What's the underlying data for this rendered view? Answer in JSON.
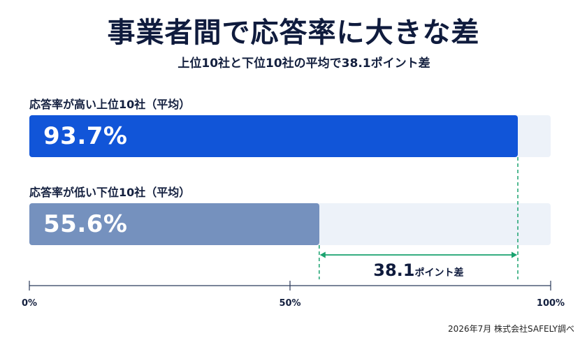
{
  "title": "事業者間で応答率に大きな差",
  "subtitle": "上位10社と下位10社の平均で38.1ポイント差",
  "source": "2026年7月 株式会社SAFELY調べ",
  "colors": {
    "top_bar": "#1155d8",
    "bottom_bar": "#7591be",
    "track": "#edf2f9",
    "diff": "#1aa36f",
    "axis": "#2b3a5a"
  },
  "chart_data": {
    "type": "bar",
    "orientation": "horizontal",
    "categories": [
      "応答率が高い上位10社（平均）",
      "応答率が低い下位10社（平均）"
    ],
    "values": [
      93.7,
      55.6
    ],
    "value_labels": [
      "93.7%",
      "55.6%"
    ],
    "xlim": [
      0,
      100
    ],
    "xticks": [
      0,
      50,
      100
    ],
    "xtick_labels": [
      "0%",
      "50%",
      "100%"
    ],
    "annotation": {
      "value": "38.1",
      "unit": "ポイント差"
    },
    "grid": false,
    "legend": "none"
  }
}
